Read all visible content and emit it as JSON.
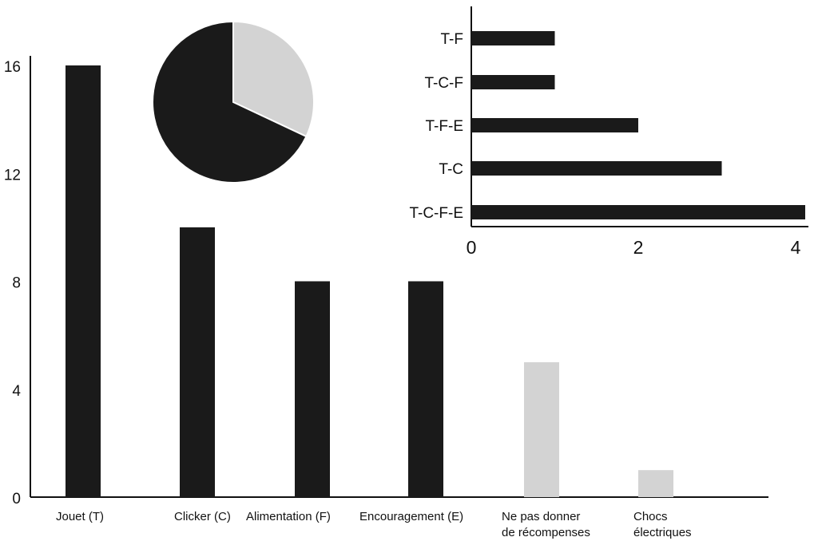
{
  "chart_data": [
    {
      "type": "bar",
      "categories": [
        "Jouet (T)",
        "Clicker (C)",
        "Alimentation (F)",
        "Encouragement (E)",
        "Ne pas donner\nde récompenses",
        "Chocs\nélectriques"
      ],
      "values": [
        16,
        10,
        8,
        8,
        5,
        1
      ],
      "bar_colors": [
        "#1a1a1a",
        "#1a1a1a",
        "#1a1a1a",
        "#1a1a1a",
        "#d3d3d3",
        "#d3d3d3"
      ],
      "yticks": [
        "0",
        "4",
        "8",
        "12",
        "16"
      ],
      "ylim": [
        0,
        16
      ],
      "grid": false
    },
    {
      "type": "pie",
      "values": [
        68,
        32
      ],
      "colors": [
        "#1a1a1a",
        "#d3d3d3"
      ]
    },
    {
      "type": "bar",
      "orientation": "horizontal",
      "categories": [
        "T-F",
        "T-C-F",
        "T-F-E",
        "T-C",
        "T-C-F-E"
      ],
      "values": [
        1,
        1,
        2,
        3,
        4
      ],
      "xticks": [
        "0",
        "2",
        "4"
      ],
      "xlim": [
        0,
        4
      ],
      "bar_color": "#1a1a1a",
      "grid": false
    }
  ]
}
